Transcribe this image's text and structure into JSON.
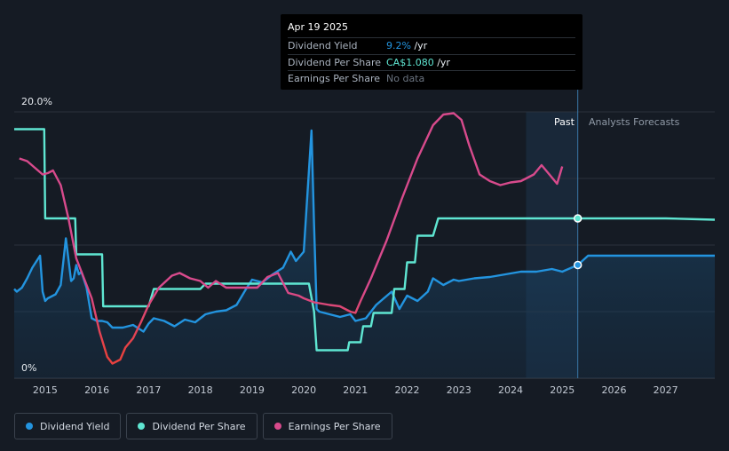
{
  "tooltip": {
    "date": "Apr 19 2025",
    "rows": [
      {
        "label": "Dividend Yield",
        "value": "9.2%",
        "suffix": " /yr"
      },
      {
        "label": "Dividend Per Share",
        "value": "CA$1.080",
        "suffix": " /yr"
      },
      {
        "label": "Earnings Per Share",
        "value": "No data",
        "suffix": ""
      }
    ]
  },
  "regions": {
    "past": "Past",
    "forecast": "Analysts Forecasts"
  },
  "legend": [
    {
      "label": "Dividend Yield",
      "color": "#2394df"
    },
    {
      "label": "Dividend Per Share",
      "color": "#5fe6d2"
    },
    {
      "label": "Earnings Per Share",
      "color": "#d84a8c"
    }
  ],
  "colors": {
    "background": "#151b24",
    "yield": "#2394df",
    "dps": "#5fe6d2",
    "eps": "#d84a8c",
    "eps_low": "#e8413f"
  },
  "chart_data": {
    "type": "line",
    "y_ticks": [
      "20.0%",
      "0%"
    ],
    "x_ticks": [
      "2015",
      "2016",
      "2017",
      "2018",
      "2019",
      "2020",
      "2021",
      "2022",
      "2023",
      "2024",
      "2025",
      "2026",
      "2027"
    ],
    "xlim": [
      2014.4,
      2027.95
    ],
    "ylim": [
      0,
      20
    ],
    "series": [
      {
        "name": "Dividend Yield",
        "x": [
          2014.4,
          2014.45,
          2014.55,
          2014.65,
          2014.75,
          2014.9,
          2014.95,
          2015.0,
          2015.05,
          2015.1,
          2015.2,
          2015.3,
          2015.4,
          2015.5,
          2015.55,
          2015.6,
          2015.65,
          2015.7,
          2015.8,
          2015.9,
          2016.0,
          2016.1,
          2016.2,
          2016.3,
          2016.5,
          2016.7,
          2016.9,
          2017.0,
          2017.1,
          2017.3,
          2017.5,
          2017.7,
          2017.9,
          2018.1,
          2018.3,
          2018.5,
          2018.7,
          2018.9,
          2019.0,
          2019.2,
          2019.4,
          2019.6,
          2019.75,
          2019.85,
          2020.0,
          2020.15,
          2020.2,
          2020.25,
          2020.3,
          2020.5,
          2020.7,
          2020.9,
          2021.0,
          2021.2,
          2021.4,
          2021.55,
          2021.7,
          2021.85,
          2022.0,
          2022.2,
          2022.4,
          2022.5,
          2022.7,
          2022.9,
          2023.0,
          2023.3,
          2023.6,
          2023.9,
          2024.2,
          2024.5,
          2024.8,
          2025.0,
          2025.3,
          2025.5,
          2026.0,
          2026.5,
          2027.0,
          2027.5,
          2027.95
        ],
        "values": [
          6.7,
          6.5,
          6.8,
          7.5,
          8.3,
          9.2,
          6.5,
          5.8,
          6.0,
          6.1,
          6.3,
          7.0,
          10.5,
          7.3,
          7.5,
          8.5,
          7.8,
          8.0,
          6.8,
          4.5,
          4.3,
          4.3,
          4.2,
          3.8,
          3.8,
          4.0,
          3.5,
          4.1,
          4.5,
          4.3,
          3.9,
          4.4,
          4.2,
          4.8,
          5.0,
          5.1,
          5.5,
          6.8,
          7.4,
          7.2,
          7.8,
          8.3,
          9.5,
          8.8,
          9.5,
          18.6,
          11.5,
          5.2,
          5.0,
          4.8,
          4.6,
          4.8,
          4.3,
          4.5,
          5.5,
          6.0,
          6.5,
          5.2,
          6.2,
          5.8,
          6.5,
          7.5,
          7.0,
          7.4,
          7.3,
          7.5,
          7.6,
          7.8,
          8.0,
          8.0,
          8.2,
          8.0,
          8.5,
          9.2,
          9.2,
          9.2,
          9.2,
          9.2,
          9.2
        ]
      },
      {
        "name": "Dividend Per Share",
        "x": [
          2014.4,
          2014.98,
          2015.0,
          2015.58,
          2015.6,
          2016.1,
          2016.12,
          2016.4,
          2016.42,
          2017.0,
          2017.1,
          2018.0,
          2018.1,
          2019.0,
          2019.1,
          2020.1,
          2020.2,
          2020.25,
          2020.85,
          2020.88,
          2021.1,
          2021.15,
          2021.3,
          2021.35,
          2021.7,
          2021.75,
          2021.95,
          2022.0,
          2022.15,
          2022.2,
          2022.5,
          2022.6,
          2023.0,
          2024.0,
          2025.3,
          2026.0,
          2027.0,
          2027.95
        ],
        "values": [
          18.7,
          18.7,
          12.0,
          12.0,
          9.3,
          9.3,
          5.4,
          5.4,
          5.4,
          5.4,
          6.7,
          6.7,
          7.1,
          7.1,
          7.1,
          7.1,
          5.0,
          2.1,
          2.1,
          2.7,
          2.7,
          3.9,
          3.9,
          4.9,
          4.9,
          6.7,
          6.7,
          8.7,
          8.7,
          10.7,
          10.7,
          12.0,
          12.0,
          12.0,
          12.0,
          12.0,
          12.0,
          11.9
        ]
      },
      {
        "name": "Earnings Per Share",
        "x": [
          2014.5,
          2014.65,
          2014.8,
          2014.95,
          2015.05,
          2015.15,
          2015.3,
          2015.45,
          2015.6,
          2015.75,
          2015.9,
          2016.05,
          2016.2,
          2016.3,
          2016.45,
          2016.55,
          2016.7,
          2016.85,
          2017.0,
          2017.2,
          2017.45,
          2017.6,
          2017.8,
          2018.0,
          2018.15,
          2018.3,
          2018.5,
          2018.7,
          2018.9,
          2019.1,
          2019.3,
          2019.5,
          2019.7,
          2019.9,
          2020.0,
          2020.2,
          2020.35,
          2020.5,
          2020.7,
          2020.9,
          2021.0,
          2021.1,
          2021.3,
          2021.6,
          2021.9,
          2022.2,
          2022.5,
          2022.7,
          2022.9,
          2023.05,
          2023.2,
          2023.4,
          2023.6,
          2023.8,
          2024.0,
          2024.2,
          2024.3,
          2024.45,
          2024.6,
          2024.75,
          2024.9,
          2025.0
        ],
        "values": [
          16.5,
          16.3,
          15.8,
          15.3,
          15.4,
          15.6,
          14.5,
          12.0,
          9.0,
          7.5,
          6.0,
          3.5,
          1.6,
          1.1,
          1.4,
          2.3,
          3.0,
          4.2,
          5.5,
          6.8,
          7.7,
          7.9,
          7.5,
          7.3,
          6.8,
          7.3,
          6.8,
          6.8,
          6.8,
          6.8,
          7.6,
          7.9,
          6.4,
          6.2,
          6.0,
          5.7,
          5.6,
          5.5,
          5.4,
          5.0,
          4.9,
          5.8,
          7.5,
          10.3,
          13.5,
          16.5,
          19.0,
          19.8,
          19.9,
          19.4,
          17.5,
          15.3,
          14.8,
          14.5,
          14.7,
          14.8,
          15.0,
          15.3,
          16.0,
          15.3,
          14.6,
          15.9
        ]
      }
    ]
  }
}
